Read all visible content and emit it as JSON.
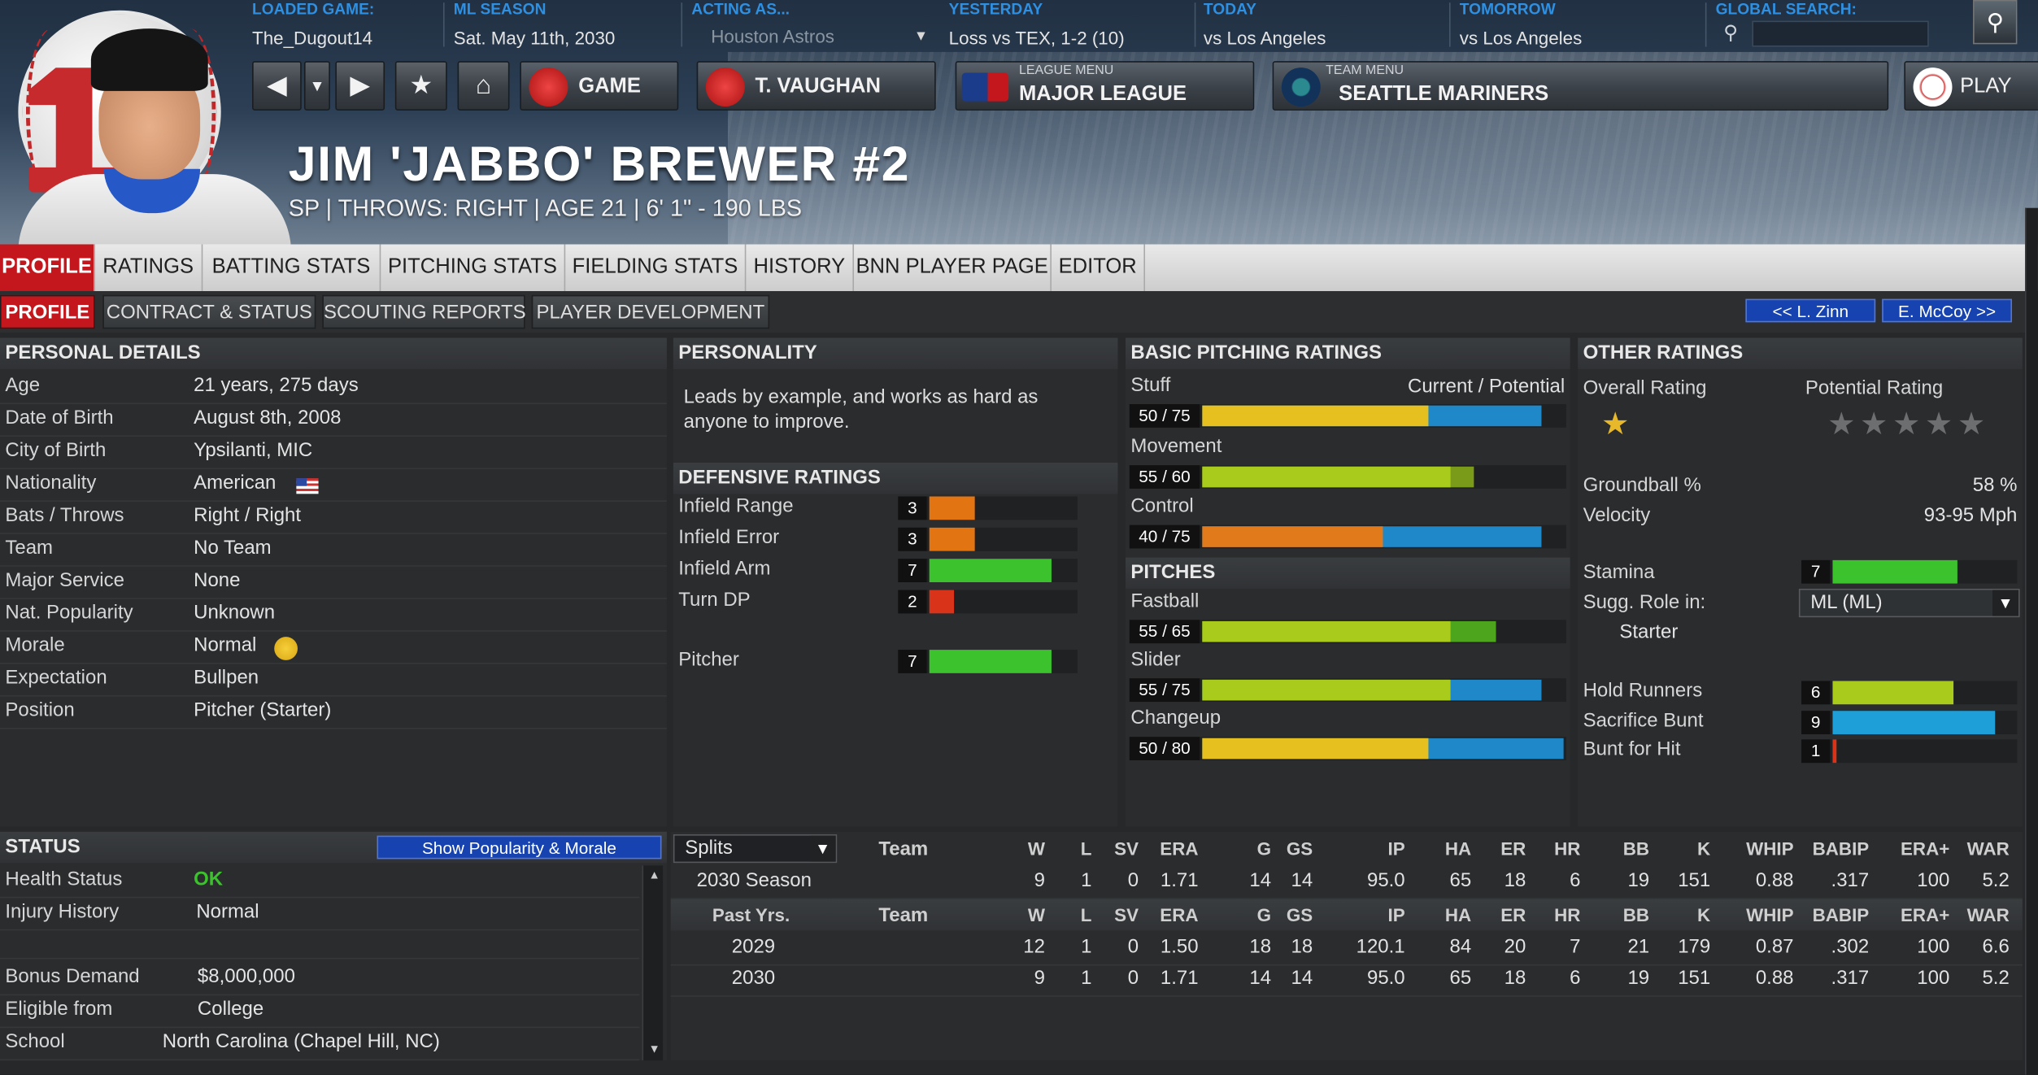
{
  "header": {
    "loaded_game": {
      "label": "LOADED GAME:",
      "value": "The_Dugout14"
    },
    "ml_season": {
      "label": "ML SEASON",
      "value": "Sat. May 11th, 2030"
    },
    "acting_as": {
      "label": "ACTING AS...",
      "value": "Houston Astros"
    },
    "yesterday": {
      "label": "YESTERDAY",
      "value": "Loss vs TEX, 1-2 (10)"
    },
    "today": {
      "label": "TODAY",
      "value": "vs Los Angeles"
    },
    "tomorrow": {
      "label": "TOMORROW",
      "value": "vs Los Angeles"
    },
    "global_search": {
      "label": "GLOBAL SEARCH:",
      "value": ""
    },
    "buttons": {
      "game": "GAME",
      "manager": "T. VAUGHAN",
      "league_small": "LEAGUE MENU",
      "league": "MAJOR LEAGUE",
      "team_small": "TEAM MENU",
      "team": "SEATTLE MARINERS",
      "play": "PLAY"
    }
  },
  "player": {
    "name": "JIM 'JABBO' BREWER  #2",
    "subtitle": "SP | THROWS: RIGHT | AGE 21 | 6' 1\" - 190 LBS"
  },
  "tabs_primary": [
    "PROFILE",
    "RATINGS",
    "BATTING STATS",
    "PITCHING STATS",
    "FIELDING STATS",
    "HISTORY",
    "BNN PLAYER PAGE",
    "EDITOR"
  ],
  "tabs_secondary": [
    "PROFILE",
    "CONTRACT & STATUS",
    "SCOUTING REPORTS",
    "PLAYER DEVELOPMENT"
  ],
  "nav": {
    "prev": "<< L. Zinn",
    "next": "E. McCoy >>"
  },
  "personal": {
    "title": "PERSONAL DETAILS",
    "rows": [
      {
        "label": "Age",
        "value": "21 years, 275 days"
      },
      {
        "label": "Date of Birth",
        "value": "August 8th, 2008"
      },
      {
        "label": "City of Birth",
        "value": "Ypsilanti, MIC"
      },
      {
        "label": "Nationality",
        "value": "American"
      },
      {
        "label": "Bats / Throws",
        "value": "Right / Right"
      },
      {
        "label": "Team",
        "value": "No Team"
      },
      {
        "label": "Major Service",
        "value": "None"
      },
      {
        "label": "Nat. Popularity",
        "value": "Unknown"
      },
      {
        "label": "Morale",
        "value": "Normal"
      },
      {
        "label": "Expectation",
        "value": "Bullpen"
      },
      {
        "label": "Position",
        "value": "Pitcher (Starter)"
      }
    ]
  },
  "personality": {
    "title": "PERSONALITY",
    "text": "Leads by example, and works as hard as anyone to improve."
  },
  "defensive": {
    "title": "DEFENSIVE RATINGS",
    "rows": [
      {
        "label": "Infield Range",
        "value": "3",
        "fraction": 0.36,
        "color": "#e37412"
      },
      {
        "label": "Infield Error",
        "value": "3",
        "fraction": 0.36,
        "color": "#e37412"
      },
      {
        "label": "Infield Arm",
        "value": "7",
        "fraction": 0.98,
        "color": "#3cc22c"
      },
      {
        "label": "Turn DP",
        "value": "2",
        "fraction": 0.2,
        "color": "#d9331a"
      },
      {
        "label": "Pitcher",
        "value": "7",
        "fraction": 0.98,
        "color": "#3cc22c"
      }
    ]
  },
  "basic_pitching": {
    "title": "BASIC PITCHING RATINGS",
    "legend": "Current / Potential",
    "rows": [
      {
        "label": "Stuff",
        "value": "50 / 75",
        "current": 50,
        "potential": 75,
        "cur_color": "#e6c01e",
        "pot_color": "#1e88c9"
      },
      {
        "label": "Movement",
        "value": "55 / 60",
        "current": 55,
        "potential": 60,
        "cur_color": "#a9cc1c",
        "pot_color": "#7a9a1a"
      },
      {
        "label": "Control",
        "value": "40 / 75",
        "current": 40,
        "potential": 75,
        "cur_color": "#e07a1a",
        "pot_color": "#1e88c9"
      }
    ]
  },
  "pitches": {
    "title": "PITCHES",
    "rows": [
      {
        "label": "Fastball",
        "value": "55 / 65",
        "current": 55,
        "potential": 65,
        "cur_color": "#a9cc1c",
        "pot_color": "#4da51e"
      },
      {
        "label": "Slider",
        "value": "55 / 75",
        "current": 55,
        "potential": 75,
        "cur_color": "#a9cc1c",
        "pot_color": "#1e88c9"
      },
      {
        "label": "Changeup",
        "value": "50 / 80",
        "current": 50,
        "potential": 80,
        "cur_color": "#e6c01e",
        "pot_color": "#1e88c9"
      }
    ]
  },
  "other": {
    "title": "OTHER RATINGS",
    "overall_label": "Overall Rating",
    "potential_label": "Potential Rating",
    "overall_stars": 0.5,
    "potential_stars": 0,
    "groundball_label": "Groundball %",
    "groundball_value": "58 %",
    "velocity_label": "Velocity",
    "velocity_value": "93-95 Mph",
    "stamina_label": "Stamina",
    "stamina_value": "7",
    "sugg_role_label": "Sugg. Role in:",
    "sugg_role_select": "ML (ML)",
    "sugg_role_value": "Starter",
    "rows": [
      {
        "label": "Hold Runners",
        "value": "6",
        "fraction": 0.73,
        "color": "#a9cc1c"
      },
      {
        "label": "Sacrifice Bunt",
        "value": "9",
        "fraction": 0.98,
        "color": "#1e9fd8"
      },
      {
        "label": "Bunt for Hit",
        "value": "1",
        "fraction": 0.02,
        "color": "#d9331a"
      }
    ]
  },
  "status": {
    "title": "STATUS",
    "button": "Show Popularity & Morale",
    "rows": [
      {
        "label": "Health Status",
        "value": "OK"
      },
      {
        "label": "Injury History",
        "value": "Normal"
      },
      {
        "label": "Bonus Demand",
        "value": "$8,000,000"
      },
      {
        "label": "Eligible from",
        "value": "College"
      },
      {
        "label": "School",
        "value": "North Carolina (Chapel Hill, NC)"
      }
    ]
  },
  "stats": {
    "splits_select": "Splits",
    "columns": [
      "Team",
      "W",
      "L",
      "SV",
      "ERA",
      "G",
      "GS",
      "IP",
      "HA",
      "ER",
      "HR",
      "BB",
      "K",
      "WHIP",
      "BABIP",
      "ERA+",
      "WAR"
    ],
    "season_row": {
      "label": "2030 Season",
      "cells": [
        "",
        "9",
        "1",
        "0",
        "1.71",
        "14",
        "14",
        "95.0",
        "65",
        "18",
        "6",
        "19",
        "151",
        "0.88",
        ".317",
        "100",
        "5.2"
      ]
    },
    "past_header": "Past Yrs.",
    "past_rows": [
      {
        "label": "2029",
        "cells": [
          "",
          "12",
          "1",
          "0",
          "1.50",
          "18",
          "18",
          "120.1",
          "84",
          "20",
          "7",
          "21",
          "179",
          "0.87",
          ".302",
          "100",
          "6.6"
        ]
      },
      {
        "label": "2030",
        "cells": [
          "",
          "9",
          "1",
          "0",
          "1.71",
          "14",
          "14",
          "95.0",
          "65",
          "18",
          "6",
          "19",
          "151",
          "0.88",
          ".317",
          "100",
          "5.2"
        ]
      }
    ]
  }
}
